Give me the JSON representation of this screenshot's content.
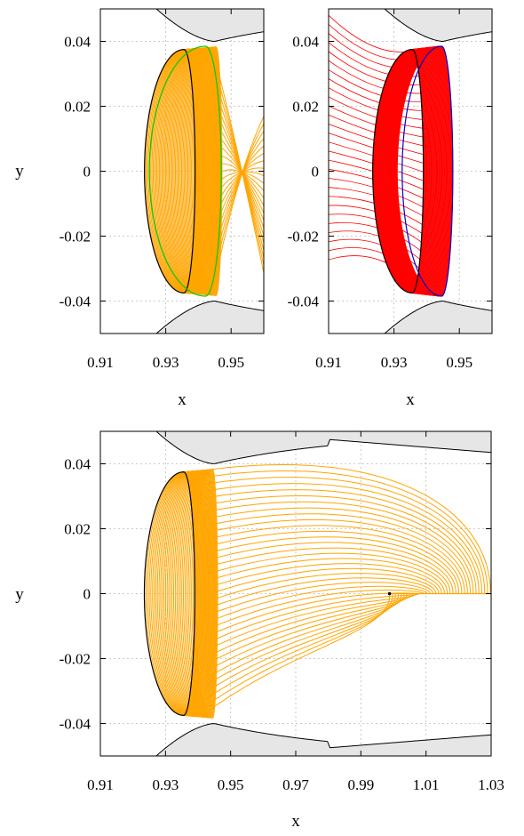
{
  "chart_data": [
    {
      "panel": "top-left",
      "type": "line",
      "xlabel": "x",
      "ylabel": "y",
      "xlim": [
        0.91,
        0.96
      ],
      "ylim": [
        -0.05,
        0.05
      ],
      "xticks": [
        "0.91",
        "0.93",
        "0.95"
      ],
      "yticks": [
        "-0.04",
        "-0.02",
        "0",
        "0.02",
        "0.04"
      ],
      "grid": true,
      "forbidden_region_color": "#e6e6e6",
      "series": [
        {
          "color": "#ffa500",
          "kind": "orbit family",
          "from_orbit": {
            "x_left": 0.9235,
            "x_right": 0.939,
            "half_height": 0.0375
          },
          "to_orbit": {
            "x_left": 0.939,
            "x_right": 0.9472,
            "half_height": 0.0383
          },
          "members": 42
        },
        {
          "color": "#ffa500",
          "kind": "fan to right edge",
          "start_x": 0.9445,
          "end_x": 0.96,
          "end_y": [
            -0.041,
            0.021
          ],
          "members": 22
        },
        {
          "color": "#000000",
          "kind": "reference orbit",
          "x_left": 0.9235,
          "x_right": 0.939,
          "half_height": 0.0375
        },
        {
          "color": "#00cc00",
          "kind": "final orbit",
          "x_left": 0.925,
          "x_right": 0.947,
          "half_height": 0.0385
        }
      ]
    },
    {
      "panel": "top-right",
      "type": "line",
      "xlabel": "x",
      "ylabel": "",
      "xlim": [
        0.91,
        0.96
      ],
      "ylim": [
        -0.05,
        0.05
      ],
      "xticks": [
        "0.91",
        "0.93",
        "0.95"
      ],
      "yticks": [
        "-0.04",
        "-0.02",
        "0",
        "0.02",
        "0.04"
      ],
      "grid": true,
      "forbidden_region_color": "#e6e6e6",
      "series": [
        {
          "color": "#ff0000",
          "kind": "orbit family",
          "from_orbit": {
            "x_left": 0.9235,
            "x_right": 0.939,
            "half_height": 0.0375
          },
          "to_orbit": {
            "x_left": 0.931,
            "x_right": 0.948,
            "half_height": 0.0385
          },
          "members": 40
        },
        {
          "color": "#ff0000",
          "kind": "fan to left edge",
          "end_y": [
            -0.028,
            0.05
          ],
          "members": 28
        },
        {
          "color": "#000000",
          "kind": "reference orbit",
          "x_left": 0.9235,
          "x_right": 0.939,
          "half_height": 0.0375
        },
        {
          "color": "#0000cc",
          "kind": "final orbit",
          "x_left": 0.9325,
          "x_right": 0.948,
          "half_height": 0.0385
        }
      ]
    },
    {
      "panel": "bottom",
      "type": "line",
      "xlabel": "x",
      "ylabel": "y",
      "xlim": [
        0.91,
        1.03
      ],
      "ylim": [
        -0.05,
        0.05
      ],
      "xticks": [
        "0.91",
        "0.93",
        "0.95",
        "0.97",
        "0.99",
        "1.01",
        "1.03"
      ],
      "yticks": [
        "-0.04",
        "-0.02",
        "0",
        "0.02",
        "0.04"
      ],
      "grid": true,
      "forbidden_region_color": "#e6e6e6",
      "series": [
        {
          "color": "#ffa500",
          "kind": "orbit family",
          "from_orbit": {
            "x_left": 0.9235,
            "x_right": 0.939,
            "half_height": 0.0375
          },
          "to_orbit": {
            "x_left": 0.939,
            "x_right": 0.946,
            "half_height": 0.0383
          },
          "members": 32
        },
        {
          "color": "#ffa500",
          "kind": "arcs to point",
          "end_point": [
            0.9988,
            0.0
          ],
          "max_x": 1.03,
          "max_y": 0.042,
          "members": 36
        },
        {
          "color": "#000000",
          "kind": "reference orbit",
          "x_left": 0.9235,
          "x_right": 0.939,
          "half_height": 0.0375
        },
        {
          "color": "#000000",
          "kind": "marker",
          "x": 0.9988,
          "y": 0.0
        }
      ]
    }
  ]
}
